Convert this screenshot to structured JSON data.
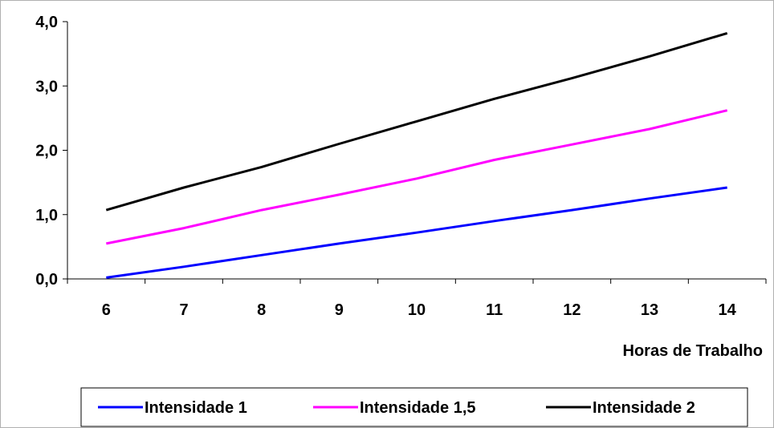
{
  "chart_data": {
    "type": "line",
    "title": "",
    "xlabel": "Horas de Trabalho",
    "ylabel": "",
    "x": [
      6,
      7,
      8,
      9,
      10,
      11,
      12,
      13,
      14
    ],
    "x_tick_labels": [
      "6",
      "7",
      "8",
      "9",
      "10",
      "11",
      "12",
      "13",
      "14"
    ],
    "ylim": [
      0,
      4
    ],
    "y_ticks": [
      0,
      1,
      2,
      3,
      4
    ],
    "y_tick_labels": [
      "0,0",
      "1,0",
      "2,0",
      "3,0",
      "4,0"
    ],
    "grid": false,
    "legend_position": "bottom",
    "series": [
      {
        "name": "Intensidade 1",
        "color": "#0000ff",
        "values": [
          0.02,
          0.19,
          0.37,
          0.55,
          0.72,
          0.9,
          1.07,
          1.25,
          1.42
        ]
      },
      {
        "name": "Intensidade 1,5",
        "color": "#ff00ff",
        "values": [
          0.55,
          0.79,
          1.07,
          1.31,
          1.56,
          1.85,
          2.09,
          2.33,
          2.62
        ]
      },
      {
        "name": "Intensidade 2",
        "color": "#000000",
        "values": [
          1.07,
          1.42,
          1.74,
          2.1,
          2.45,
          2.8,
          3.12,
          3.46,
          3.82
        ]
      }
    ]
  }
}
